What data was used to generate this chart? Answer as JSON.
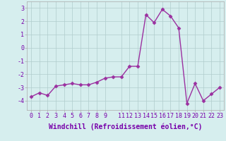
{
  "x": [
    0,
    1,
    2,
    3,
    4,
    5,
    6,
    7,
    8,
    9,
    10,
    11,
    12,
    13,
    14,
    15,
    16,
    17,
    18,
    19,
    20,
    21,
    22,
    23
  ],
  "y": [
    -3.7,
    -3.4,
    -3.6,
    -2.9,
    -2.8,
    -2.7,
    -2.8,
    -2.8,
    -2.6,
    -2.3,
    -2.2,
    -2.2,
    -1.4,
    -1.4,
    2.5,
    1.9,
    2.9,
    2.4,
    1.5,
    -4.2,
    -2.7,
    -4.0,
    -3.5,
    -3.0
  ],
  "line_color": "#9b30a0",
  "marker": "D",
  "marker_size": 2.5,
  "background_color": "#d6eeee",
  "grid_color": "#b0cccc",
  "xlabel": "Windchill (Refroidissement éolien,°C)",
  "xlabel_fontsize": 7,
  "yticks": [
    -4,
    -3,
    -2,
    -1,
    0,
    1,
    2,
    3
  ],
  "xticks": [
    0,
    1,
    2,
    3,
    4,
    5,
    6,
    7,
    8,
    9,
    11,
    12,
    13,
    14,
    15,
    16,
    17,
    18,
    19,
    20,
    21,
    22,
    23
  ],
  "ylim": [
    -4.7,
    3.5
  ],
  "xlim": [
    -0.5,
    23.5
  ],
  "tick_fontsize": 6,
  "line_width": 1.0
}
